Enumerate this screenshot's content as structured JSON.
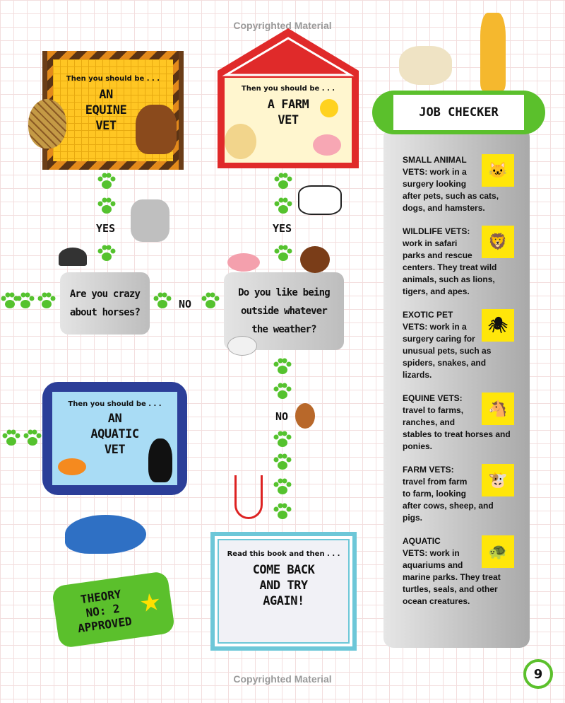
{
  "copyright": "Copyrighted Material",
  "equine_sign": {
    "pre": "Then you should be . . .",
    "title_line1": "AN",
    "title_line2": "EQUINE",
    "title_line3": "VET"
  },
  "farm_sign": {
    "pre": "Then you should be . . .",
    "title_line1": "A FARM",
    "title_line2": "VET"
  },
  "aquatic_sign": {
    "pre": "Then you should be . . .",
    "title_line1": "AN",
    "title_line2": "AQUATIC",
    "title_line3": "VET"
  },
  "question_horses": {
    "line1": "Are you crazy",
    "line2": "about horses?"
  },
  "question_weather": {
    "line1": "Do you like being",
    "line2": "outside whatever",
    "line3": "the weather?"
  },
  "labels": {
    "yes_left": "YES",
    "yes_right": "YES",
    "no_middle": "NO",
    "no_bottom": "NO"
  },
  "come_back": {
    "pre": "Read this book and then . . .",
    "line1": "COME BACK",
    "line2": "AND TRY",
    "line3": "AGAIN!"
  },
  "theory": {
    "line1": "THEORY",
    "line2": "NO: 2",
    "line3": "APPROVED"
  },
  "job_checker": {
    "title": "JOB CHECKER",
    "entries": [
      {
        "head": "SMALL ANIMAL",
        "text": "VETS: work in a surgery looking after pets, such as cats, dogs, and hamsters.",
        "icon": "cat-icon"
      },
      {
        "head": "WILDLIFE VETS:",
        "text": "work in safari parks and rescue centers. They treat wild animals, such as lions, tigers, and apes.",
        "icon": "lion-icon"
      },
      {
        "head": "EXOTIC PET",
        "text": "VETS: work in a surgery caring for unusual pets, such as spiders, snakes, and lizards.",
        "icon": "spider-icon"
      },
      {
        "head": "EQUINE VETS:",
        "text": "travel to farms, ranches, and stables to treat horses and ponies.",
        "icon": "horse-icon"
      },
      {
        "head": "FARM VETS:",
        "text": "travel from farm to farm, looking after cows, sheep, and pigs.",
        "icon": "cow-icon"
      },
      {
        "head": "AQUATIC",
        "text": "VETS: work in aquariums and marine parks. They treat turtles, seals, and other ocean creatures.",
        "icon": "turtle-icon"
      }
    ]
  },
  "page_number": "9",
  "colors": {
    "paw": "#55c22e",
    "badge": "#5bc02c",
    "panel": "#c4c4c4",
    "icon_bg": "#ffe60a",
    "barn": "#e02a2a",
    "aquatic_frame": "#2c3e98"
  }
}
